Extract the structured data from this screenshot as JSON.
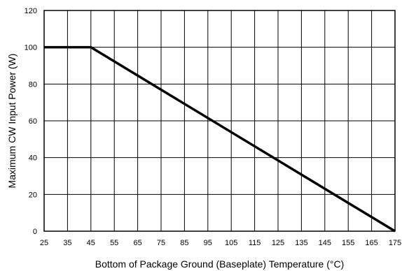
{
  "chart_data": {
    "type": "line",
    "title": "",
    "xlabel": "Bottom of Package Ground (Baseplate) Temperature (°C)",
    "ylabel": "Maximum CW Input Power (W)",
    "xlim": [
      25,
      175
    ],
    "ylim": [
      0,
      120
    ],
    "x_ticks": [
      25,
      35,
      45,
      55,
      65,
      75,
      85,
      95,
      105,
      115,
      125,
      135,
      145,
      155,
      165,
      175
    ],
    "y_ticks": [
      0,
      20,
      40,
      60,
      80,
      100,
      120
    ],
    "grid": true,
    "series": [
      {
        "x": [
          25,
          45,
          175
        ],
        "y": [
          100,
          100,
          0
        ]
      }
    ],
    "colors": {
      "line": "#000000",
      "grid": "#000000",
      "background": "#ffffff"
    }
  }
}
